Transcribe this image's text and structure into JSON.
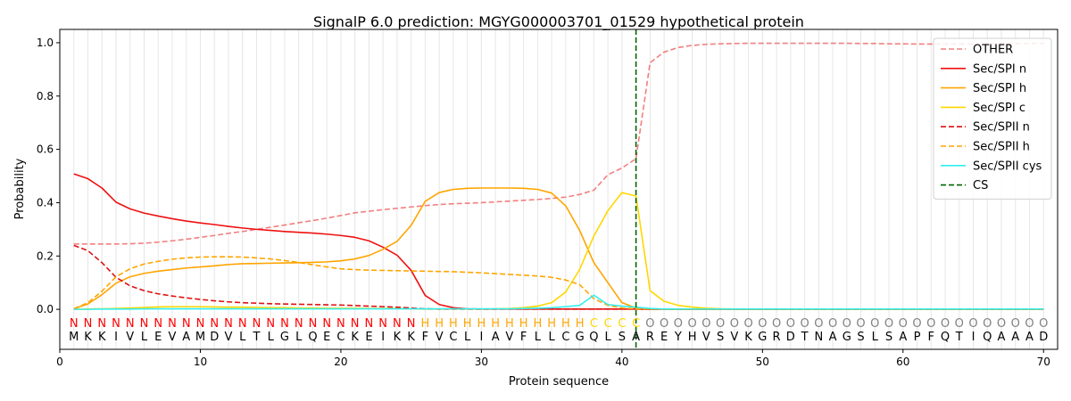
{
  "chart_data": {
    "type": "line",
    "title": "SignalP 6.0 prediction: MGYG000003701_01529 hypothetical protein",
    "xlabel": "Protein sequence",
    "ylabel": "Probability",
    "xlim": [
      0,
      71
    ],
    "ylim": [
      -0.15,
      1.05
    ],
    "xticks": [
      0,
      10,
      20,
      30,
      40,
      50,
      60,
      70
    ],
    "yticks": [
      0.0,
      0.2,
      0.4,
      0.6,
      0.8,
      1.0
    ],
    "xtick_labels": [
      "0",
      "10",
      "20",
      "30",
      "40",
      "50",
      "60",
      "70"
    ],
    "ytick_labels": [
      "0.0",
      "0.2",
      "0.4",
      "0.6",
      "0.8",
      "1.0"
    ],
    "grid": "vertical",
    "legend_position": "top-right",
    "cs_position": 41,
    "sequence": [
      "M",
      "K",
      "K",
      "I",
      "V",
      "L",
      "E",
      "V",
      "A",
      "M",
      "D",
      "V",
      "L",
      "T",
      "L",
      "G",
      "L",
      "Q",
      "E",
      "C",
      "K",
      "E",
      "I",
      "K",
      "K",
      "F",
      "V",
      "C",
      "L",
      "I",
      "A",
      "V",
      "F",
      "L",
      "L",
      "C",
      "G",
      "Q",
      "L",
      "S",
      "A",
      "R",
      "E",
      "Y",
      "H",
      "V",
      "S",
      "V",
      "K",
      "G",
      "R",
      "D",
      "T",
      "N",
      "A",
      "G",
      "S",
      "L",
      "S",
      "A",
      "P",
      "F",
      "Q",
      "T",
      "I",
      "Q",
      "A",
      "A",
      "A",
      "D"
    ],
    "region_labels": [
      "N",
      "N",
      "N",
      "N",
      "N",
      "N",
      "N",
      "N",
      "N",
      "N",
      "N",
      "N",
      "N",
      "N",
      "N",
      "N",
      "N",
      "N",
      "N",
      "N",
      "N",
      "N",
      "N",
      "N",
      "N",
      "H",
      "H",
      "H",
      "H",
      "H",
      "H",
      "H",
      "H",
      "H",
      "H",
      "H",
      "H",
      "C",
      "C",
      "C",
      "C",
      "O",
      "O",
      "O",
      "O",
      "O",
      "O",
      "O",
      "O",
      "O",
      "O",
      "O",
      "O",
      "O",
      "O",
      "O",
      "O",
      "O",
      "O",
      "O",
      "O",
      "O",
      "O",
      "O",
      "O",
      "O",
      "O",
      "O",
      "O",
      "O"
    ],
    "region_colors": {
      "N": "#ff0000",
      "H": "#ffa500",
      "C": "#ffd700",
      "O": "#808080"
    },
    "series": [
      {
        "name": "OTHER",
        "color": "#f08080",
        "dash": "dashed",
        "values": [
          0.245,
          0.245,
          0.245,
          0.245,
          0.246,
          0.248,
          0.252,
          0.257,
          0.263,
          0.27,
          0.277,
          0.285,
          0.292,
          0.3,
          0.308,
          0.316,
          0.325,
          0.333,
          0.342,
          0.352,
          0.362,
          0.368,
          0.374,
          0.379,
          0.384,
          0.389,
          0.393,
          0.396,
          0.398,
          0.4,
          0.403,
          0.406,
          0.409,
          0.412,
          0.416,
          0.421,
          0.431,
          0.447,
          0.505,
          0.53,
          0.565,
          0.925,
          0.965,
          0.982,
          0.99,
          0.994,
          0.996,
          0.997,
          0.998,
          0.998,
          0.998,
          0.998,
          0.998,
          0.998,
          0.998,
          0.998,
          0.997,
          0.997,
          0.996,
          0.996,
          0.995,
          0.995,
          0.995,
          0.995,
          0.995,
          0.996,
          0.997,
          0.997,
          0.997,
          0.998
        ]
      },
      {
        "name": "Sec/SPI n",
        "color": "#ee1111",
        "dash": "solid",
        "values": [
          0.508,
          0.49,
          0.455,
          0.402,
          0.377,
          0.361,
          0.35,
          0.34,
          0.331,
          0.324,
          0.318,
          0.311,
          0.305,
          0.3,
          0.296,
          0.292,
          0.289,
          0.286,
          0.282,
          0.277,
          0.27,
          0.257,
          0.233,
          0.203,
          0.146,
          0.052,
          0.018,
          0.006,
          0.002,
          0.001,
          0.001,
          0.001,
          0.001,
          0.001,
          0.001,
          0.001,
          0.001,
          0.001,
          0.001,
          0.001,
          0.001,
          0,
          0,
          0,
          0,
          0,
          0,
          0,
          0,
          0,
          0,
          0,
          0,
          0,
          0,
          0,
          0,
          0,
          0,
          0,
          0,
          0,
          0,
          0,
          0,
          0,
          0,
          0,
          0,
          0
        ]
      },
      {
        "name": "Sec/SPI h",
        "color": "#ffa500",
        "dash": "solid",
        "values": [
          0.002,
          0.02,
          0.055,
          0.098,
          0.122,
          0.135,
          0.143,
          0.149,
          0.155,
          0.159,
          0.163,
          0.168,
          0.171,
          0.172,
          0.173,
          0.174,
          0.175,
          0.176,
          0.178,
          0.182,
          0.189,
          0.202,
          0.225,
          0.255,
          0.315,
          0.405,
          0.438,
          0.45,
          0.454,
          0.455,
          0.455,
          0.455,
          0.454,
          0.45,
          0.436,
          0.388,
          0.295,
          0.175,
          0.1,
          0.025,
          0.005,
          0.001,
          0,
          0,
          0,
          0,
          0,
          0,
          0,
          0,
          0,
          0,
          0,
          0,
          0,
          0,
          0,
          0,
          0,
          0,
          0,
          0,
          0,
          0,
          0,
          0,
          0,
          0,
          0,
          0
        ]
      },
      {
        "name": "Sec/SPI c",
        "color": "#ffd700",
        "dash": "solid",
        "values": [
          0.0,
          0.001,
          0.002,
          0.003,
          0.005,
          0.007,
          0.009,
          0.01,
          0.01,
          0.01,
          0.009,
          0.008,
          0.008,
          0.007,
          0.006,
          0.006,
          0.005,
          0.005,
          0.004,
          0.004,
          0.004,
          0.003,
          0.003,
          0.003,
          0.002,
          0.001,
          0.001,
          0.001,
          0.001,
          0.001,
          0.002,
          0.003,
          0.006,
          0.012,
          0.025,
          0.065,
          0.15,
          0.275,
          0.37,
          0.438,
          0.425,
          0.07,
          0.03,
          0.015,
          0.008,
          0.004,
          0.002,
          0.001,
          0.001,
          0.001,
          0.001,
          0,
          0,
          0,
          0,
          0,
          0,
          0,
          0,
          0,
          0,
          0,
          0,
          0,
          0,
          0,
          0,
          0,
          0,
          0
        ]
      },
      {
        "name": "Sec/SPII n",
        "color": "#dd1111",
        "dash": "dashed",
        "values": [
          0.24,
          0.22,
          0.175,
          0.12,
          0.088,
          0.07,
          0.058,
          0.05,
          0.043,
          0.037,
          0.032,
          0.028,
          0.025,
          0.023,
          0.021,
          0.02,
          0.019,
          0.018,
          0.017,
          0.016,
          0.014,
          0.012,
          0.01,
          0.008,
          0.005,
          0.002,
          0.001,
          0.001,
          0.001,
          0.001,
          0.001,
          0.001,
          0.001,
          0.001,
          0.001,
          0.001,
          0.001,
          0.001,
          0.001,
          0.001,
          0.001,
          0,
          0,
          0,
          0,
          0,
          0,
          0,
          0,
          0,
          0,
          0,
          0,
          0,
          0,
          0,
          0,
          0,
          0,
          0,
          0,
          0,
          0,
          0,
          0,
          0,
          0,
          0,
          0,
          0
        ]
      },
      {
        "name": "Sec/SPII h",
        "color": "#ffa500",
        "dash": "dashed",
        "values": [
          0.002,
          0.025,
          0.068,
          0.122,
          0.152,
          0.17,
          0.18,
          0.188,
          0.193,
          0.196,
          0.197,
          0.197,
          0.196,
          0.193,
          0.189,
          0.183,
          0.176,
          0.167,
          0.159,
          0.152,
          0.149,
          0.147,
          0.146,
          0.145,
          0.144,
          0.143,
          0.142,
          0.141,
          0.139,
          0.137,
          0.134,
          0.131,
          0.128,
          0.125,
          0.12,
          0.11,
          0.092,
          0.04,
          0.015,
          0.005,
          0.002,
          0.001,
          0,
          0,
          0,
          0,
          0,
          0,
          0,
          0,
          0,
          0,
          0,
          0,
          0,
          0,
          0,
          0,
          0,
          0,
          0,
          0,
          0,
          0,
          0,
          0,
          0,
          0,
          0,
          0
        ]
      },
      {
        "name": "Sec/SPII cys",
        "color": "#33eeee",
        "dash": "solid",
        "values": [
          0.0,
          0.0,
          0.001,
          0.001,
          0.001,
          0.002,
          0.002,
          0.002,
          0.002,
          0.002,
          0.002,
          0.002,
          0.002,
          0.002,
          0.002,
          0.002,
          0.002,
          0.002,
          0.002,
          0.002,
          0.002,
          0.002,
          0.002,
          0.002,
          0.002,
          0.002,
          0.002,
          0.002,
          0.002,
          0.002,
          0.002,
          0.002,
          0.003,
          0.004,
          0.006,
          0.01,
          0.015,
          0.053,
          0.018,
          0.012,
          0.008,
          0.003,
          0.001,
          0.001,
          0.001,
          0.001,
          0.001,
          0.001,
          0.001,
          0.001,
          0.001,
          0.001,
          0.001,
          0.001,
          0.001,
          0.001,
          0.001,
          0.001,
          0.001,
          0.001,
          0.001,
          0.001,
          0.001,
          0.001,
          0.001,
          0.001,
          0.001,
          0.001,
          0.001,
          0.001
        ]
      }
    ],
    "cs_legend": {
      "name": "CS",
      "color": "#006400",
      "dash": "dashed"
    }
  }
}
